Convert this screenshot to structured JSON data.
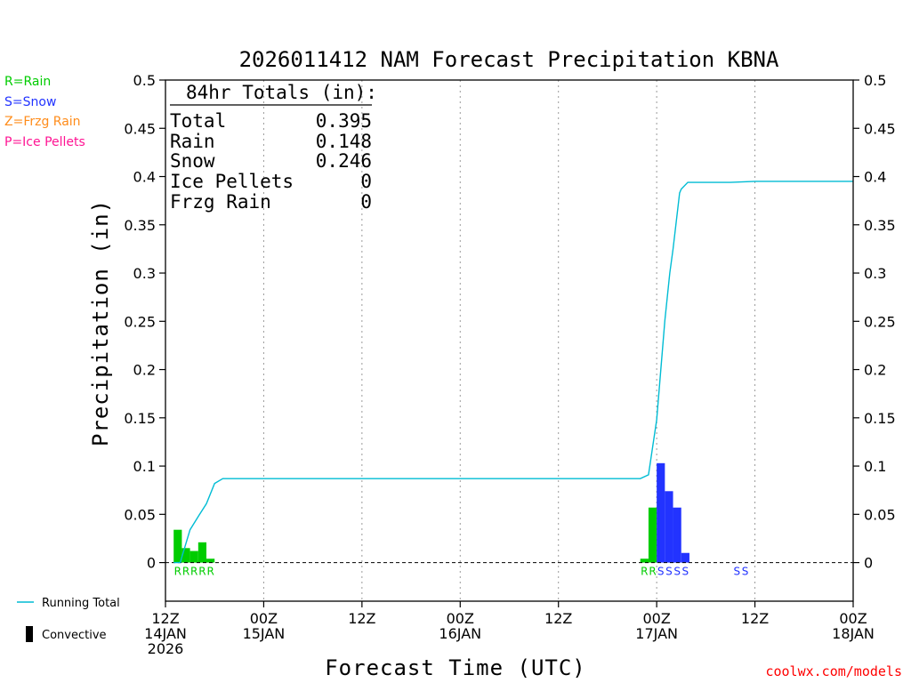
{
  "colors": {
    "rain": "#00cc00",
    "snow": "#2233ff",
    "frzg_rain": "#ff8c1a",
    "ice_pellets": "#ff1493",
    "running_total": "#00bcd4",
    "convective": "#000000",
    "credit": "#ff0000"
  },
  "legend_ptypes": [
    {
      "text": "R=Rain",
      "color_key": "rain"
    },
    {
      "text": "S=Snow",
      "color_key": "snow"
    },
    {
      "text": "Z=Frzg Rain",
      "color_key": "frzg_rain"
    },
    {
      "text": "P=Ice Pellets",
      "color_key": "ice_pellets"
    }
  ],
  "legend_lines": {
    "running_total": "Running Total",
    "convective": "Convective"
  },
  "credit": "coolwx.com/models",
  "chart_data": {
    "type": "bar",
    "title": "2026011412 NAM Forecast Precipitation KBNA",
    "xlabel": "Forecast Time (UTC)",
    "ylabel": "Precipitation (in)",
    "units": "forecast hours (0 = 12Z 14JAN 2026)",
    "xlim": [
      0,
      84
    ],
    "ylim": [
      -0.04,
      0.5
    ],
    "yticks": [
      0,
      0.05,
      0.1,
      0.15,
      0.2,
      0.25,
      0.3,
      0.35,
      0.4,
      0.45,
      0.5
    ],
    "ytick_labels": [
      "0",
      "0.05",
      "0.1",
      "0.15",
      "0.2",
      "0.25",
      "0.3",
      "0.35",
      "0.4",
      "0.45",
      "0.5"
    ],
    "xticks": [
      {
        "hour": 0,
        "lines": [
          "12Z",
          "14JAN",
          "2026"
        ]
      },
      {
        "hour": 12,
        "lines": [
          "00Z",
          "15JAN"
        ]
      },
      {
        "hour": 24,
        "lines": [
          "12Z"
        ]
      },
      {
        "hour": 36,
        "lines": [
          "00Z",
          "16JAN"
        ]
      },
      {
        "hour": 48,
        "lines": [
          "12Z"
        ]
      },
      {
        "hour": 60,
        "lines": [
          "00Z",
          "17JAN"
        ]
      },
      {
        "hour": 72,
        "lines": [
          "12Z"
        ]
      },
      {
        "hour": 84,
        "lines": [
          "00Z",
          "18JAN"
        ]
      }
    ],
    "grid_hours": [
      12,
      24,
      36,
      48,
      60,
      72
    ],
    "bars": [
      {
        "hour": 2,
        "value": 0.034,
        "ptype": "R"
      },
      {
        "hour": 3,
        "value": 0.015,
        "ptype": "R"
      },
      {
        "hour": 4,
        "value": 0.012,
        "ptype": "R"
      },
      {
        "hour": 5,
        "value": 0.021,
        "ptype": "R"
      },
      {
        "hour": 6,
        "value": 0.004,
        "ptype": "R"
      },
      {
        "hour": 59,
        "value": 0.004,
        "ptype": "R"
      },
      {
        "hour": 60,
        "value": 0.057,
        "ptype": "R"
      },
      {
        "hour": 61,
        "value": 0.103,
        "ptype": "S"
      },
      {
        "hour": 62,
        "value": 0.074,
        "ptype": "S"
      },
      {
        "hour": 63,
        "value": 0.057,
        "ptype": "S"
      },
      {
        "hour": 64,
        "value": 0.01,
        "ptype": "S"
      }
    ],
    "ptype_labels": [
      {
        "hour": 2,
        "text": "R",
        "color_key": "rain"
      },
      {
        "hour": 3,
        "text": "R",
        "color_key": "rain"
      },
      {
        "hour": 4,
        "text": "R",
        "color_key": "rain"
      },
      {
        "hour": 5,
        "text": "R",
        "color_key": "rain"
      },
      {
        "hour": 6,
        "text": "R",
        "color_key": "rain"
      },
      {
        "hour": 59,
        "text": "R",
        "color_key": "rain"
      },
      {
        "hour": 60,
        "text": "R",
        "color_key": "rain"
      },
      {
        "hour": 61,
        "text": "S",
        "color_key": "snow"
      },
      {
        "hour": 62,
        "text": "S",
        "color_key": "snow"
      },
      {
        "hour": 63,
        "text": "S",
        "color_key": "snow"
      },
      {
        "hour": 64,
        "text": "S",
        "color_key": "snow"
      },
      {
        "hour": 70.3,
        "text": "S",
        "color_key": "snow"
      },
      {
        "hour": 71.3,
        "text": "S",
        "color_key": "snow"
      }
    ],
    "running_total": {
      "x": [
        1,
        1.8,
        3,
        4.1,
        5,
        6,
        7,
        12,
        36,
        58,
        59,
        60,
        61,
        61.6,
        62,
        62.8,
        63,
        63.8,
        64.5,
        66,
        69,
        72,
        84
      ],
      "y": [
        0,
        0,
        0.034,
        0.049,
        0.061,
        0.082,
        0.087,
        0.087,
        0.087,
        0.087,
        0.091,
        0.148,
        0.251,
        0.3,
        0.325,
        0.383,
        0.387,
        0.394,
        0.394,
        0.394,
        0.394,
        0.395,
        0.395
      ]
    },
    "totals": {
      "header": "84hr Totals (in):",
      "rows": [
        {
          "label": "Total",
          "value": "0.395"
        },
        {
          "label": "Rain",
          "value": "0.148"
        },
        {
          "label": "Snow",
          "value": "0.246"
        },
        {
          "label": "Ice Pellets",
          "value": "0"
        },
        {
          "label": "Frzg Rain",
          "value": "0"
        }
      ]
    }
  }
}
